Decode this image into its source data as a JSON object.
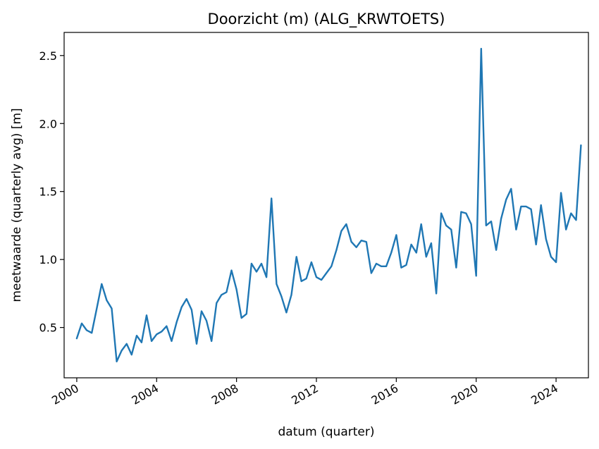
{
  "chart_data": {
    "type": "line",
    "title": "Doorzicht (m) (ALG_KRWTOETS)",
    "xlabel": "datum (quarter)",
    "ylabel": "meetwaarde (quarterly avg) [m]",
    "x_domain": [
      "1999-05-15",
      "2025-08-15"
    ],
    "ylim": [
      0.13,
      2.67
    ],
    "x_ticks": [
      {
        "date": "2000-01-01",
        "label": "2000"
      },
      {
        "date": "2004-01-01",
        "label": "2004"
      },
      {
        "date": "2008-01-01",
        "label": "2008"
      },
      {
        "date": "2012-01-01",
        "label": "2012"
      },
      {
        "date": "2016-01-01",
        "label": "2016"
      },
      {
        "date": "2020-01-01",
        "label": "2020"
      },
      {
        "date": "2024-01-01",
        "label": "2024"
      }
    ],
    "y_ticks": [
      {
        "value": 0.5,
        "label": "0.5"
      },
      {
        "value": 1.0,
        "label": "1.0"
      },
      {
        "value": 1.5,
        "label": "1.5"
      },
      {
        "value": 2.0,
        "label": "2.0"
      },
      {
        "value": 2.5,
        "label": "2.5"
      }
    ],
    "grid": false,
    "line_color": "#1f77b4",
    "series": [
      {
        "x": [
          "2000-01-01",
          "2000-04-01",
          "2000-07-01",
          "2000-10-01",
          "2001-01-01",
          "2001-04-01",
          "2001-07-01",
          "2001-10-01",
          "2002-01-01",
          "2002-04-01",
          "2002-07-01",
          "2002-10-01",
          "2003-01-01",
          "2003-04-01",
          "2003-07-01",
          "2003-10-01",
          "2004-01-01",
          "2004-04-01",
          "2004-07-01",
          "2004-10-01",
          "2005-01-01",
          "2005-04-01",
          "2005-07-01",
          "2005-10-01",
          "2006-01-01",
          "2006-04-01",
          "2006-07-01",
          "2006-10-01",
          "2007-01-01",
          "2007-04-01",
          "2007-07-01",
          "2007-10-01",
          "2008-01-01",
          "2008-04-01",
          "2008-07-01",
          "2008-10-01",
          "2009-01-01",
          "2009-04-01",
          "2009-07-01",
          "2009-10-01",
          "2010-01-01",
          "2010-04-01",
          "2010-07-01",
          "2010-10-01",
          "2011-01-01",
          "2011-04-01",
          "2011-07-01",
          "2011-10-01",
          "2012-01-01",
          "2012-04-01",
          "2012-07-01",
          "2012-10-01",
          "2013-01-01",
          "2013-04-01",
          "2013-07-01",
          "2013-10-01",
          "2014-01-01",
          "2014-04-01",
          "2014-07-01",
          "2014-10-01",
          "2015-01-01",
          "2015-04-01",
          "2015-07-01",
          "2015-10-01",
          "2016-01-01",
          "2016-04-01",
          "2016-07-01",
          "2016-10-01",
          "2017-01-01",
          "2017-04-01",
          "2017-07-01",
          "2017-10-01",
          "2018-01-01",
          "2018-04-01",
          "2018-07-01",
          "2018-10-01",
          "2019-01-01",
          "2019-04-01",
          "2019-07-01",
          "2019-10-01",
          "2020-01-01",
          "2020-04-01",
          "2020-07-01",
          "2020-10-01",
          "2021-01-01",
          "2021-04-01",
          "2021-07-01",
          "2021-10-01",
          "2022-01-01",
          "2022-04-01",
          "2022-07-01",
          "2022-10-01",
          "2023-01-01",
          "2023-04-01",
          "2023-07-01",
          "2023-10-01",
          "2024-01-01",
          "2024-04-01",
          "2024-07-01",
          "2024-10-01",
          "2025-01-01",
          "2025-04-01"
        ],
        "y": [
          0.42,
          0.53,
          0.48,
          0.46,
          0.64,
          0.82,
          0.7,
          0.64,
          0.25,
          0.33,
          0.38,
          0.3,
          0.44,
          0.39,
          0.59,
          0.4,
          0.45,
          0.47,
          0.51,
          0.4,
          0.54,
          0.65,
          0.71,
          0.63,
          0.38,
          0.62,
          0.55,
          0.4,
          0.68,
          0.74,
          0.76,
          0.92,
          0.78,
          0.57,
          0.6,
          0.97,
          0.91,
          0.97,
          0.87,
          1.45,
          0.82,
          0.73,
          0.61,
          0.74,
          1.02,
          0.84,
          0.86,
          0.98,
          0.87,
          0.85,
          0.9,
          0.95,
          1.07,
          1.21,
          1.26,
          1.13,
          1.09,
          1.14,
          1.13,
          0.9,
          0.97,
          0.95,
          0.95,
          1.05,
          1.18,
          0.94,
          0.96,
          1.11,
          1.05,
          1.26,
          1.02,
          1.12,
          0.75,
          1.34,
          1.25,
          1.22,
          0.94,
          1.35,
          1.34,
          1.26,
          0.88,
          2.55,
          1.25,
          1.28,
          1.07,
          1.3,
          1.44,
          1.52,
          1.22,
          1.39,
          1.39,
          1.37,
          1.11,
          1.4,
          1.15,
          1.02,
          0.98,
          1.49,
          1.22,
          1.34,
          1.29,
          1.84
        ]
      }
    ]
  }
}
